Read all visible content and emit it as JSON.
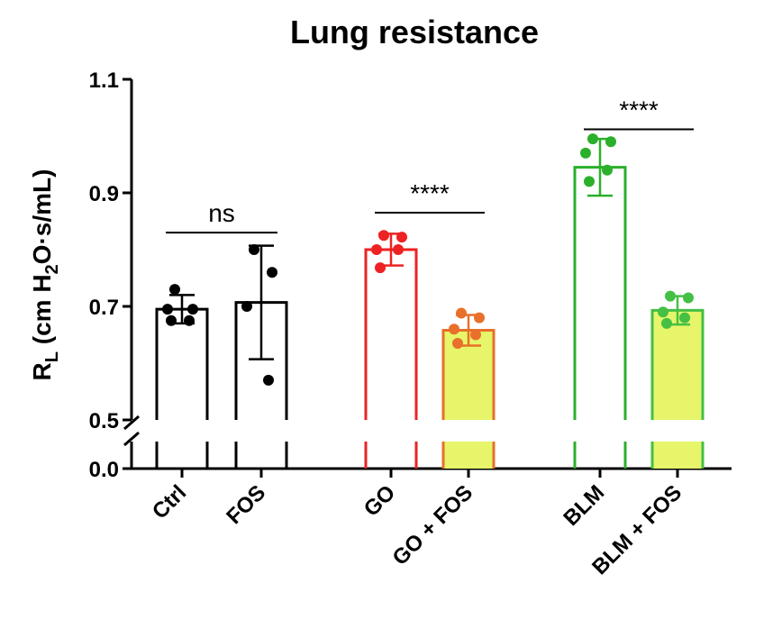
{
  "chart_data": {
    "type": "bar",
    "title": "Lung resistance",
    "ylabel_main": "R",
    "ylabel_sub": "L",
    "ylabel_rest_1": " (cm H",
    "ylabel_sub2": "2",
    "ylabel_rest_2": "O·s/mL)",
    "yticks_upper": [
      "1.1",
      "0.9",
      "0.7",
      "0.5"
    ],
    "ytick_lower": "0.0",
    "ylim_upper": [
      0.5,
      1.1
    ],
    "axis_break": true,
    "categories": [
      "Ctrl",
      "FOS",
      "GO",
      "GO + FOS",
      "BLM",
      "BLM + FOS"
    ],
    "bars": [
      {
        "category": "Ctrl",
        "mean": 0.695,
        "sd": 0.025,
        "points": [
          0.73,
          0.695,
          0.695,
          0.675,
          0.675
        ],
        "color": "#000000",
        "fill": "none",
        "point_color": "#000000"
      },
      {
        "category": "FOS",
        "mean": 0.707,
        "sd": 0.1,
        "points": [
          0.8,
          0.76,
          0.7,
          0.57
        ],
        "color": "#000000",
        "fill": "none",
        "point_color": "#000000"
      },
      {
        "category": "GO",
        "mean": 0.8,
        "sd": 0.028,
        "points": [
          0.825,
          0.822,
          0.8,
          0.8,
          0.768
        ],
        "color": "#ee2222",
        "fill": "none",
        "point_color": "#ee2222"
      },
      {
        "category": "GO + FOS",
        "mean": 0.658,
        "sd": 0.027,
        "points": [
          0.688,
          0.68,
          0.66,
          0.65,
          0.635
        ],
        "color": "#e8702a",
        "fill": "#e6f56a",
        "point_color": "#e8702a"
      },
      {
        "category": "BLM",
        "mean": 0.945,
        "sd": 0.05,
        "points": [
          0.995,
          0.99,
          0.97,
          0.94,
          0.92
        ],
        "color": "#2ab02a",
        "fill": "none",
        "point_color": "#2ab02a"
      },
      {
        "category": "BLM + FOS",
        "mean": 0.693,
        "sd": 0.025,
        "points": [
          0.718,
          0.715,
          0.69,
          0.68,
          0.67
        ],
        "color": "#44c044",
        "fill": "#e6f56a",
        "point_color": "#44c044"
      }
    ],
    "significance": [
      {
        "from": "Ctrl",
        "to": "FOS",
        "y": 0.83,
        "label": "ns"
      },
      {
        "from": "GO",
        "to": "GO + FOS",
        "y": 0.865,
        "label": "****"
      },
      {
        "from": "BLM",
        "to": "BLM + FOS",
        "y": 1.012,
        "label": "****"
      }
    ],
    "grid": false
  }
}
